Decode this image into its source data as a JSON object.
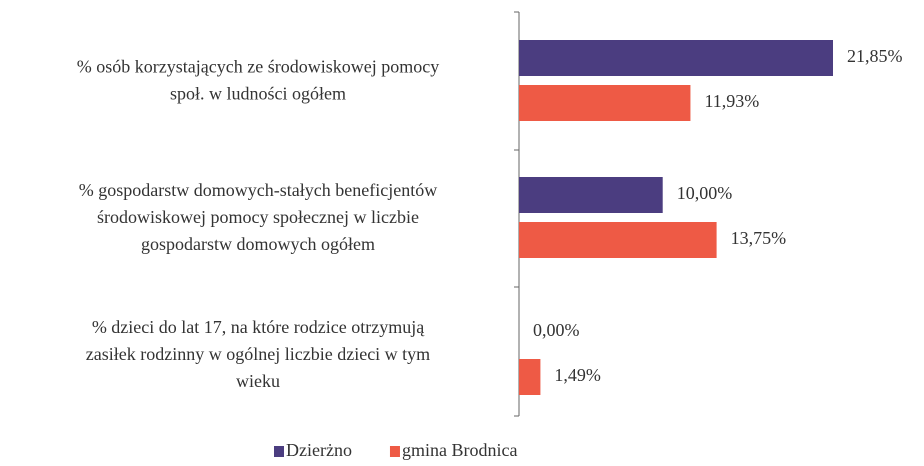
{
  "chart_data": {
    "type": "bar",
    "orientation": "horizontal",
    "categories": [
      [
        "% osób korzystających ze środowiskowej pomocy",
        "społ. w ludności ogółem"
      ],
      [
        "% gospodarstw domowych-stałych beneficjentów",
        "środowiskowej pomocy społecznej w liczbie",
        "gospodarstw domowych ogółem"
      ],
      [
        "% dzieci do lat 17, na które rodzice otrzymują",
        "zasiłek rodzinny w ogólnej liczbie dzieci w tym",
        "wieku"
      ]
    ],
    "series": [
      {
        "name": "Dzierżno",
        "color": "#4b3d80",
        "values": [
          21.85,
          10.0,
          0.0
        ],
        "value_labels": [
          "21,85%",
          "10,00%",
          "0,00%"
        ]
      },
      {
        "name": "gmina Brodnica",
        "color": "#ee5a45",
        "values": [
          11.93,
          13.75,
          1.49
        ],
        "value_labels": [
          "11,93%",
          "13,75%",
          "1,49%"
        ]
      }
    ],
    "legend": "bottom"
  }
}
